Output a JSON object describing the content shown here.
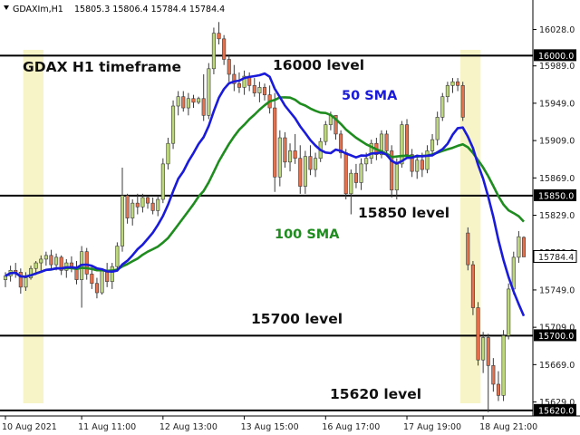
{
  "header": {
    "symbol_info": "GDAXIm,H1",
    "ohlc": "15805.3 15806.4 15784.4 15784.4"
  },
  "chart_data": {
    "type": "candlestick",
    "title": "GDAX H1 timeframe",
    "ylim": [
      15614,
      16046
    ],
    "y_ticks": [
      15629.0,
      15669.0,
      15709.0,
      15749.0,
      15789.0,
      15829.0,
      15869.0,
      15909.0,
      15949.0,
      15989.0,
      16028.0
    ],
    "x_ticks": [
      "10 Aug 2021",
      "11 Aug 11:00",
      "12 Aug 13:00",
      "13 Aug 15:00",
      "16 Aug 17:00",
      "17 Aug 19:00",
      "18 Aug 21:00"
    ],
    "levels": [
      {
        "value": 16000.0,
        "label": "16000 level",
        "axis_label": "16000.0"
      },
      {
        "value": 15850.0,
        "label": "15850 level",
        "axis_label": "15850.0"
      },
      {
        "value": 15700.0,
        "label": "15700 level",
        "axis_label": "15700.0"
      },
      {
        "value": 15620.0,
        "label": "15620 level",
        "axis_label": "15620.0"
      }
    ],
    "current_price": {
      "value": 15784.4,
      "label": "15784.4"
    },
    "sma50": {
      "label": "50 SMA",
      "color": "#1a1adb"
    },
    "sma100": {
      "label": "100 SMA",
      "color": "#1e8c1e"
    },
    "bull_color": "#bdd87a",
    "bear_color": "#e8704a",
    "highlight_color": "#f7f4c8",
    "candles": [
      [
        15760,
        15768,
        15752,
        15764
      ],
      [
        15764,
        15775,
        15758,
        15770
      ],
      [
        15770,
        15778,
        15762,
        15768
      ],
      [
        15768,
        15772,
        15745,
        15752
      ],
      [
        15752,
        15768,
        15748,
        15762
      ],
      [
        15762,
        15775,
        15760,
        15772
      ],
      [
        15772,
        15780,
        15765,
        15778
      ],
      [
        15778,
        15786,
        15770,
        15782
      ],
      [
        15782,
        15790,
        15775,
        15786
      ],
      [
        15786,
        15792,
        15772,
        15776
      ],
      [
        15776,
        15788,
        15770,
        15784
      ],
      [
        15784,
        15786,
        15765,
        15770
      ],
      [
        15770,
        15782,
        15762,
        15778
      ],
      [
        15778,
        15785,
        15768,
        15772
      ],
      [
        15772,
        15780,
        15755,
        15760
      ],
      [
        15760,
        15796,
        15730,
        15790
      ],
      [
        15790,
        15794,
        15760,
        15766
      ],
      [
        15766,
        15775,
        15750,
        15756
      ],
      [
        15756,
        15762,
        15740,
        15746
      ],
      [
        15746,
        15772,
        15744,
        15770
      ],
      [
        15770,
        15778,
        15752,
        15758
      ],
      [
        15758,
        15778,
        15750,
        15774
      ],
      [
        15774,
        15800,
        15770,
        15796
      ],
      [
        15796,
        15880,
        15790,
        15850
      ],
      [
        15850,
        15852,
        15820,
        15826
      ],
      [
        15826,
        15846,
        15818,
        15842
      ],
      [
        15842,
        15852,
        15830,
        15838
      ],
      [
        15838,
        15852,
        15832,
        15848
      ],
      [
        15848,
        15850,
        15836,
        15842
      ],
      [
        15842,
        15848,
        15830,
        15834
      ],
      [
        15834,
        15850,
        15828,
        15846
      ],
      [
        15846,
        15890,
        15842,
        15884
      ],
      [
        15884,
        15912,
        15878,
        15906
      ],
      [
        15906,
        15952,
        15900,
        15946
      ],
      [
        15946,
        15962,
        15936,
        15956
      ],
      [
        15956,
        15962,
        15940,
        15944
      ],
      [
        15944,
        15960,
        15936,
        15954
      ],
      [
        15954,
        15958,
        15944,
        15950
      ],
      [
        15950,
        15956,
        15948,
        15954
      ],
      [
        15954,
        15980,
        15930,
        15936
      ],
      [
        15936,
        15992,
        15932,
        15986
      ],
      [
        15986,
        16030,
        15980,
        16024
      ],
      [
        16024,
        16036,
        16012,
        16018
      ],
      [
        16018,
        16022,
        15990,
        15996
      ],
      [
        15996,
        16000,
        15972,
        15980
      ],
      [
        15980,
        15990,
        15962,
        15970
      ],
      [
        15970,
        15982,
        15960,
        15966
      ],
      [
        15966,
        15984,
        15958,
        15978
      ],
      [
        15978,
        15982,
        15962,
        15968
      ],
      [
        15968,
        15976,
        15956,
        15960
      ],
      [
        15960,
        15972,
        15950,
        15966
      ],
      [
        15966,
        15970,
        15952,
        15958
      ],
      [
        15958,
        15968,
        15938,
        15944
      ],
      [
        15944,
        15960,
        15854,
        15870
      ],
      [
        15870,
        15920,
        15860,
        15912
      ],
      [
        15912,
        15918,
        15880,
        15886
      ],
      [
        15886,
        15906,
        15876,
        15898
      ],
      [
        15898,
        15916,
        15884,
        15890
      ],
      [
        15890,
        15904,
        15852,
        15860
      ],
      [
        15860,
        15898,
        15852,
        15892
      ],
      [
        15892,
        15904,
        15872,
        15878
      ],
      [
        15878,
        15896,
        15870,
        15890
      ],
      [
        15890,
        15912,
        15886,
        15908
      ],
      [
        15908,
        15930,
        15904,
        15926
      ],
      [
        15926,
        15940,
        15920,
        15936
      ],
      [
        15936,
        15932,
        15910,
        15916
      ],
      [
        15916,
        15920,
        15890,
        15896
      ],
      [
        15896,
        15900,
        15846,
        15852
      ],
      [
        15852,
        15878,
        15830,
        15874
      ],
      [
        15874,
        15884,
        15858,
        15864
      ],
      [
        15864,
        15890,
        15856,
        15884
      ],
      [
        15884,
        15896,
        15876,
        15890
      ],
      [
        15890,
        15910,
        15884,
        15906
      ],
      [
        15906,
        15912,
        15888,
        15894
      ],
      [
        15894,
        15920,
        15890,
        15916
      ],
      [
        15916,
        15920,
        15892,
        15898
      ],
      [
        15898,
        15904,
        15848,
        15856
      ],
      [
        15856,
        15890,
        15846,
        15884
      ],
      [
        15884,
        15930,
        15880,
        15926
      ],
      [
        15926,
        15932,
        15890,
        15894
      ],
      [
        15894,
        15900,
        15870,
        15876
      ],
      [
        15876,
        15894,
        15868,
        15888
      ],
      [
        15888,
        15896,
        15870,
        15878
      ],
      [
        15878,
        15904,
        15874,
        15898
      ],
      [
        15898,
        15916,
        15892,
        15910
      ],
      [
        15910,
        15940,
        15904,
        15934
      ],
      [
        15934,
        15960,
        15930,
        15956
      ],
      [
        15956,
        15972,
        15950,
        15968
      ],
      [
        15968,
        15976,
        15960,
        15972
      ],
      [
        15972,
        15976,
        15962,
        15968
      ],
      [
        15968,
        15972,
        15930,
        15934
      ],
      [
        15810,
        15816,
        15770,
        15776
      ],
      [
        15776,
        15780,
        15722,
        15730
      ],
      [
        15730,
        15736,
        15668,
        15674
      ],
      [
        15674,
        15704,
        15660,
        15698
      ],
      [
        15698,
        15702,
        15618,
        15668
      ],
      [
        15668,
        15676,
        15640,
        15648
      ],
      [
        15648,
        15662,
        15630,
        15636
      ],
      [
        15636,
        15706,
        15630,
        15700
      ],
      [
        15700,
        15756,
        15696,
        15750
      ],
      [
        15750,
        15790,
        15744,
        15784
      ],
      [
        15784,
        15812,
        15778,
        15806
      ],
      [
        15805.3,
        15806.4,
        15784.4,
        15784.4
      ]
    ],
    "highlight_ranges": [
      [
        4,
        7
      ],
      [
        90,
        93
      ]
    ]
  }
}
